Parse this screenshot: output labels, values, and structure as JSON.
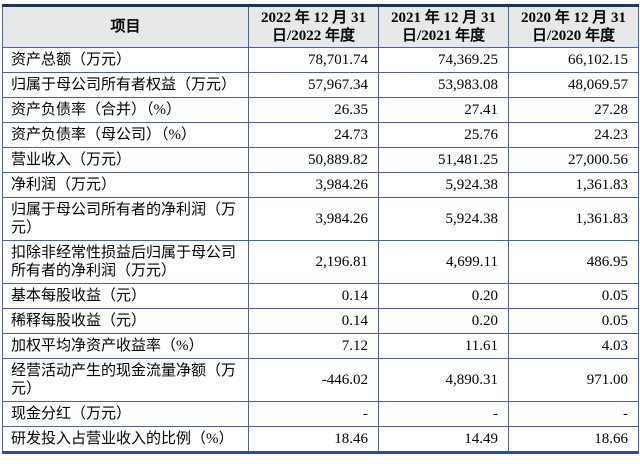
{
  "table": {
    "columns": [
      "项目",
      "2022 年 12 月 31 日/2022 年度",
      "2021 年 12 月 31 日/2021 年度",
      "2020 年 12 月 31 日/2020 年度"
    ],
    "rows": [
      {
        "label": "资产总额（万元）",
        "values": [
          "78,701.74",
          "74,369.25",
          "66,102.15"
        ]
      },
      {
        "label": "归属于母公司所有者权益（万元）",
        "values": [
          "57,967.34",
          "53,983.08",
          "48,069.57"
        ]
      },
      {
        "label": "资产负债率（合并）（%）",
        "values": [
          "26.35",
          "27.41",
          "27.28"
        ]
      },
      {
        "label": "资产负债率（母公司）（%）",
        "values": [
          "24.73",
          "25.76",
          "24.23"
        ]
      },
      {
        "label": "营业收入（万元）",
        "values": [
          "50,889.82",
          "51,481.25",
          "27,000.56"
        ]
      },
      {
        "label": "净利润（万元）",
        "values": [
          "3,984.26",
          "5,924.38",
          "1,361.83"
        ]
      },
      {
        "label": "归属于母公司所有者的净利润（万元）",
        "values": [
          "3,984.26",
          "5,924.38",
          "1,361.83"
        ]
      },
      {
        "label": "扣除非经常性损益后归属于母公司所有者的净利润（万元）",
        "values": [
          "2,196.81",
          "4,699.11",
          "486.95"
        ]
      },
      {
        "label": "基本每股收益（元）",
        "values": [
          "0.14",
          "0.20",
          "0.05"
        ]
      },
      {
        "label": "稀释每股收益（元）",
        "values": [
          "0.14",
          "0.20",
          "0.05"
        ]
      },
      {
        "label": "加权平均净资产收益率（%）",
        "values": [
          "7.12",
          "11.61",
          "4.03"
        ]
      },
      {
        "label": "经营活动产生的现金流量净额（万元）",
        "values": [
          "-446.02",
          "4,890.31",
          "971.00"
        ]
      },
      {
        "label": "现金分红（万元）",
        "values": [
          "-",
          "-",
          "-"
        ]
      },
      {
        "label": "研发投入占营业收入的比例（%）",
        "values": [
          "18.46",
          "14.49",
          "18.66"
        ]
      }
    ]
  },
  "colors": {
    "border_inner": "#4560AE",
    "border_top": "#17375E",
    "border_bottom": "#2E4B9E",
    "header_bg": "#E8E8E8",
    "text": "#000000"
  }
}
